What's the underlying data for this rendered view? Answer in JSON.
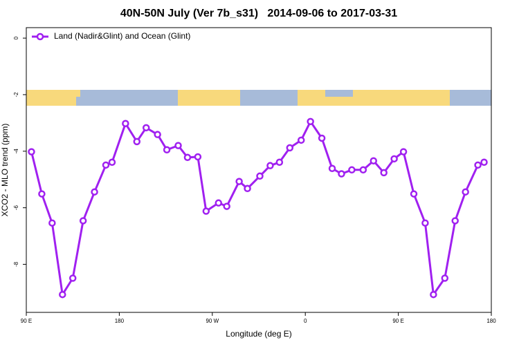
{
  "chart_data": {
    "type": "line",
    "title": "40N-50N July (Ver 7b_s31)   2014-09-06 to 2017-03-31",
    "x_label": "Longitude (deg E)",
    "y_label": "XCO2 - MLO trend (ppm)",
    "x": [
      95,
      105,
      115,
      125,
      135,
      145,
      156,
      167,
      173,
      186,
      197,
      206,
      217,
      226,
      237,
      246,
      256,
      264,
      276,
      284,
      296,
      304,
      316,
      326,
      335,
      345,
      356,
      365,
      376,
      386,
      395,
      405,
      416,
      426,
      436,
      446,
      455,
      465,
      476,
      484,
      495,
      505,
      515,
      527,
      533
    ],
    "series": [
      {
        "name": "Land (Nadir&Glint) and Ocean (Glint)",
        "color": "#a020f0",
        "values": [
          -4.02,
          -5.51,
          -6.54,
          -9.07,
          -8.49,
          -6.46,
          -5.44,
          -4.49,
          -4.39,
          -3.02,
          -3.66,
          -3.17,
          -3.41,
          -3.95,
          -3.8,
          -4.22,
          -4.2,
          -6.12,
          -5.83,
          -5.95,
          -5.07,
          -5.32,
          -4.88,
          -4.51,
          -4.39,
          -3.88,
          -3.61,
          -2.95,
          -3.54,
          -4.61,
          -4.8,
          -4.66,
          -4.66,
          -4.34,
          -4.76,
          -4.27,
          -4.02,
          -5.51,
          -6.54,
          -9.07,
          -8.49,
          -6.46,
          -5.44,
          -4.49,
          -4.39
        ]
      }
    ],
    "xlim": [
      90,
      540
    ],
    "xticks": [
      {
        "value": 90,
        "label": "90 E"
      },
      180,
      {
        "value": 270,
        "label": "90 W"
      },
      {
        "value": 360,
        "label": "0"
      },
      {
        "value": 450,
        "label": "90 E"
      },
      {
        "value": 540,
        "label": "180"
      }
    ],
    "ylim": [
      -9.7,
      0.37
    ],
    "yticks": [
      0,
      -2,
      -4,
      -6,
      -8
    ],
    "legend": "top-left"
  }
}
